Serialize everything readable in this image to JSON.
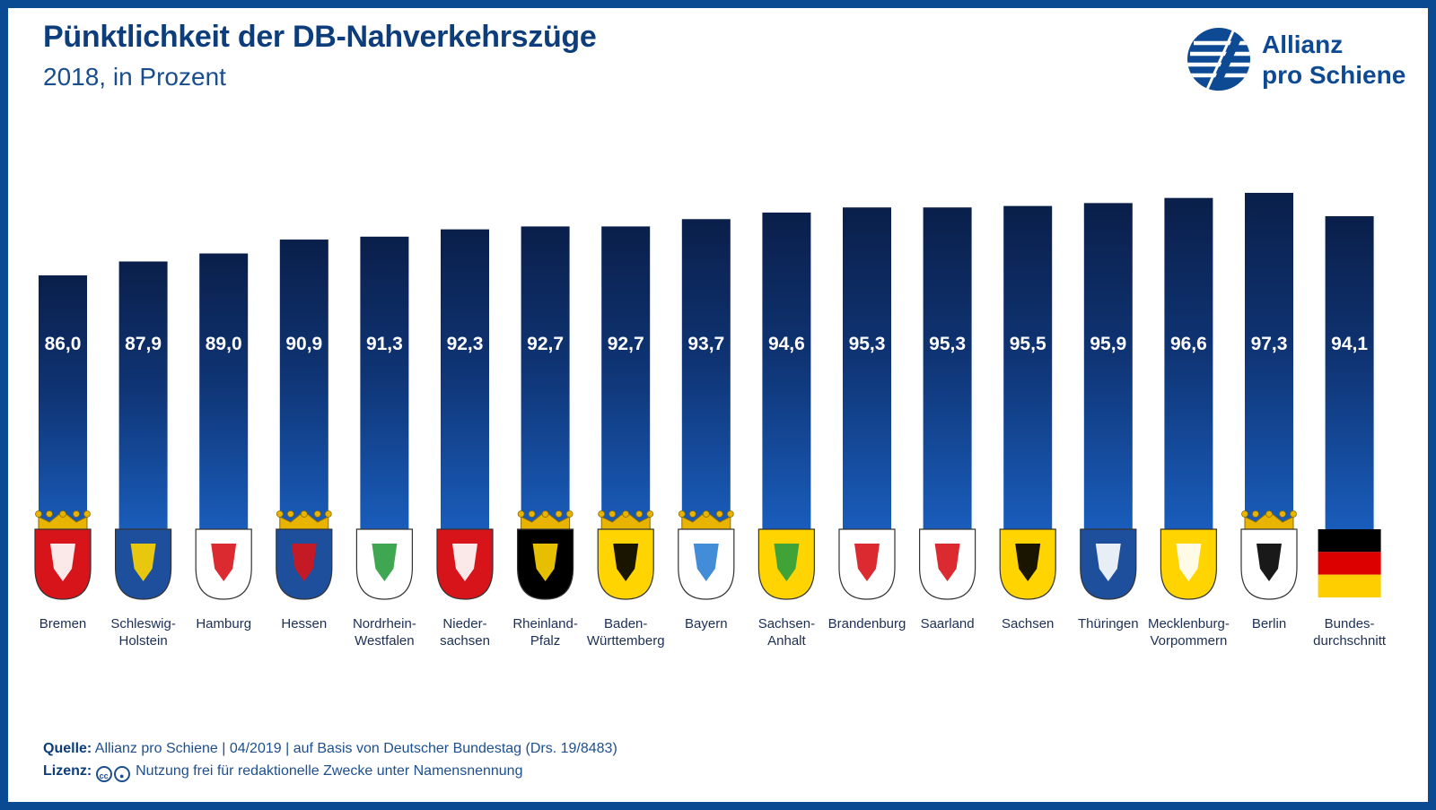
{
  "header": {
    "title": "Pünktlichkeit der DB-Nahverkehrszüge",
    "subtitle": "2018, in Prozent"
  },
  "logo": {
    "line1": "Allianz",
    "line2": "pro Schiene",
    "icon": "allianz-pro-schiene-logo-icon",
    "color": "#0d4a93"
  },
  "chart_data": {
    "type": "bar",
    "title": "Pünktlichkeit der DB-Nahverkehrszüge",
    "subtitle": "2018, in Prozent",
    "categories": [
      "Bremen",
      "Schleswig-Holstein",
      "Hamburg",
      "Hessen",
      "Nordrhein-Westfalen",
      "Niedersachsen",
      "Rheinland-Pfalz",
      "Baden-Württemberg",
      "Bayern",
      "Sachsen-Anhalt",
      "Brandenburg",
      "Saarland",
      "Sachsen",
      "Thüringen",
      "Mecklenburg-Vorpommern",
      "Berlin",
      "Bundesdurchschnitt"
    ],
    "label_lines": [
      [
        "Bremen"
      ],
      [
        "Schleswig-",
        "Holstein"
      ],
      [
        "Hamburg"
      ],
      [
        "Hessen"
      ],
      [
        "Nordrhein-",
        "Westfalen"
      ],
      [
        "Nieder-",
        "sachsen"
      ],
      [
        "Rheinland-",
        "Pfalz"
      ],
      [
        "Baden-",
        "Württemberg"
      ],
      [
        "Bayern"
      ],
      [
        "Sachsen-",
        "Anhalt"
      ],
      [
        "Brandenburg"
      ],
      [
        "Saarland"
      ],
      [
        "Sachsen"
      ],
      [
        "Thüringen"
      ],
      [
        "Mecklenburg-",
        "Vorpommern"
      ],
      [
        "Berlin"
      ],
      [
        "Bundes-",
        "durchschnitt"
      ]
    ],
    "values": [
      86.0,
      87.9,
      89.0,
      90.9,
      91.3,
      92.3,
      92.7,
      92.7,
      93.7,
      94.6,
      95.3,
      95.3,
      95.5,
      95.9,
      96.6,
      97.3,
      94.1
    ],
    "value_labels": [
      "86,0",
      "87,9",
      "89,0",
      "90,9",
      "91,3",
      "92,3",
      "92,7",
      "92,7",
      "93,7",
      "94,6",
      "95,3",
      "95,3",
      "95,5",
      "95,9",
      "96,6",
      "97,3",
      "94,1"
    ],
    "icons": [
      "coat-of-arms-bremen-icon",
      "coat-of-arms-schleswig-holstein-icon",
      "coat-of-arms-hamburg-icon",
      "coat-of-arms-hessen-icon",
      "coat-of-arms-nordrhein-westfalen-icon",
      "coat-of-arms-niedersachsen-icon",
      "coat-of-arms-rheinland-pfalz-icon",
      "coat-of-arms-baden-wuerttemberg-icon",
      "coat-of-arms-bayern-icon",
      "coat-of-arms-sachsen-anhalt-icon",
      "coat-of-arms-brandenburg-icon",
      "coat-of-arms-saarland-icon",
      "coat-of-arms-sachsen-icon",
      "coat-of-arms-thueringen-icon",
      "coat-of-arms-mecklenburg-vorpommern-icon",
      "coat-of-arms-berlin-icon",
      "germany-flag-icon"
    ],
    "ylim": [
      50,
      100
    ],
    "grid": false,
    "legend": "none",
    "colors": {
      "bar_top": "#0a1f4a",
      "bar_bottom": "#1757b3",
      "value_label": "#ffffff",
      "category_label": "#1b2f55"
    }
  },
  "footer": {
    "source_label": "Quelle:",
    "source_text": "Allianz pro Schiene | 04/2019 | auf Basis von Deutscher Bundestag (Drs. 19/8483)",
    "license_label": "Lizenz:",
    "license_text": "Nutzung frei für redaktionelle Zwecke unter Namensnennung",
    "license_icons": [
      "cc-icon",
      "by-person-icon"
    ]
  },
  "colors": {
    "frame": "#0a4a92",
    "title": "#0d3d7a",
    "text": "#1d4f8e"
  }
}
